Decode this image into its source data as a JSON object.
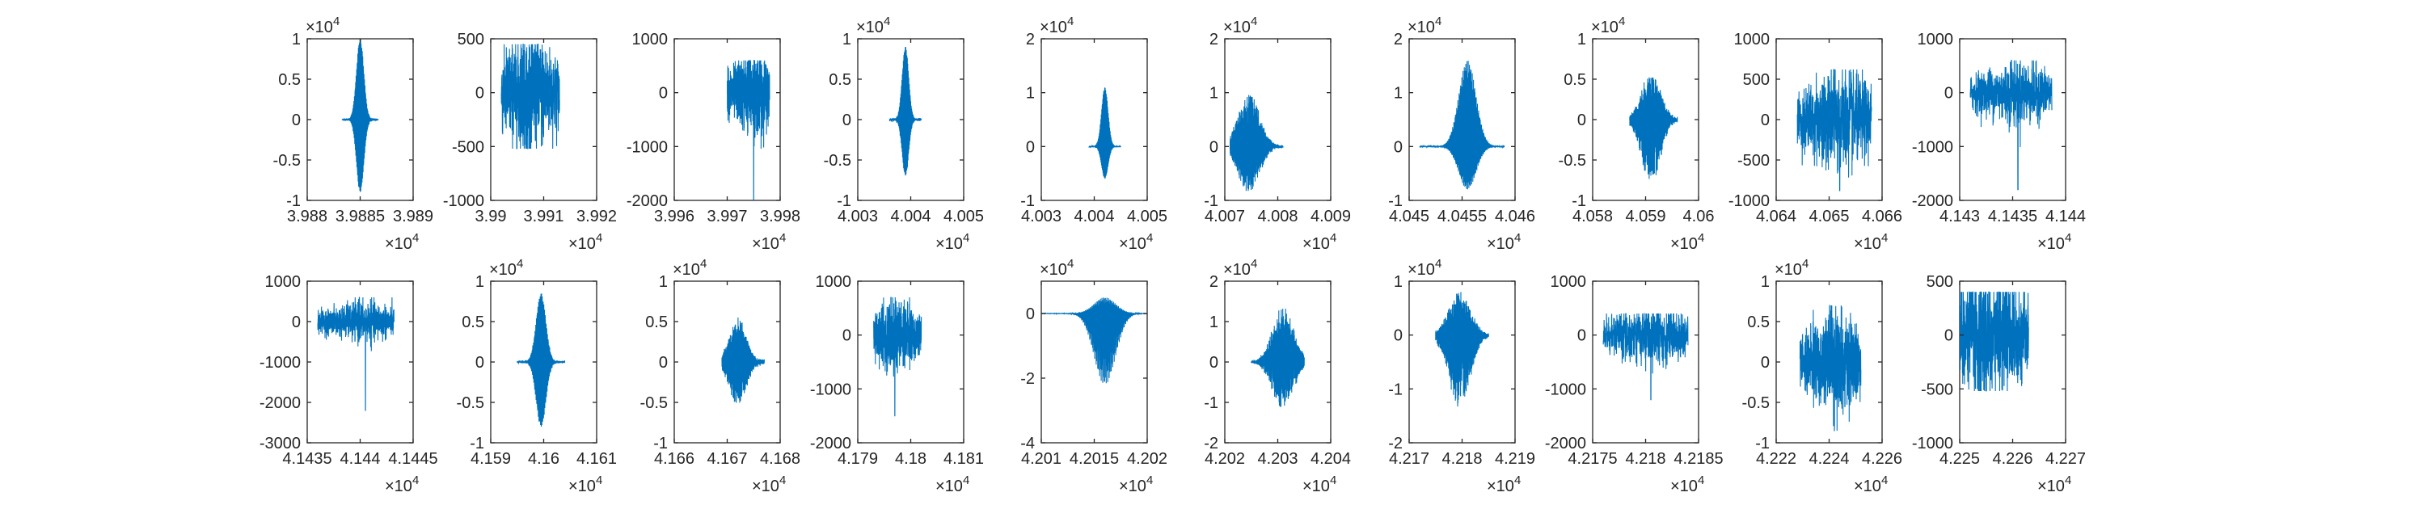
{
  "chart_data": {
    "type": "line",
    "grid": false,
    "legend": "none",
    "line_color": "#0072BD",
    "axis_color": "#262626",
    "subplots": [
      {
        "row": 0,
        "col": 0,
        "xlim": [
          39880,
          39890
        ],
        "x_ticks": [
          "3.988",
          "3.9885",
          "3.989"
        ],
        "x_tick_values": [
          39880,
          39885,
          39890
        ],
        "x_exponent": "4",
        "ylim": [
          -10000,
          10000
        ],
        "y_ticks": [
          "-1",
          "-0.5",
          "0",
          "0.5",
          "1"
        ],
        "y_tick_values": [
          -10000,
          -5000,
          0,
          5000,
          10000
        ],
        "y_exponent": "4",
        "signal": {
          "x_start": 39883.3,
          "x_end": 39886.7,
          "amplitude_max": 10000,
          "amplitude_min": -9000,
          "peak_x": 39885,
          "baseline_noise": 200,
          "shape": "damped"
        }
      },
      {
        "row": 0,
        "col": 1,
        "xlim": [
          39900,
          39920
        ],
        "x_ticks": [
          "3.99",
          "3.991",
          "3.992"
        ],
        "x_tick_values": [
          39900,
          39910,
          39920
        ],
        "x_exponent": "4",
        "ylim": [
          -1000,
          500
        ],
        "y_ticks": [
          "-1000",
          "-500",
          "0",
          "500"
        ],
        "y_tick_values": [
          -1000,
          -500,
          0,
          500
        ],
        "y_exponent": "",
        "signal": {
          "x_start": 39902,
          "x_end": 39913,
          "amplitude_max": 450,
          "amplitude_min": -520,
          "peak_x": 39907,
          "baseline_noise": 280,
          "shape": "noise"
        }
      },
      {
        "row": 0,
        "col": 2,
        "xlim": [
          39960,
          39980
        ],
        "x_ticks": [
          "3.996",
          "3.997",
          "3.998"
        ],
        "x_tick_values": [
          39960,
          39970,
          39980
        ],
        "x_exponent": "4",
        "ylim": [
          -2000,
          1000
        ],
        "y_ticks": [
          "-2000",
          "-1000",
          "0",
          "1000"
        ],
        "y_tick_values": [
          -2000,
          -1000,
          0,
          1000
        ],
        "y_exponent": "",
        "signal": {
          "x_start": 39970,
          "x_end": 39978,
          "amplitude_max": 600,
          "amplitude_min": -2000,
          "peak_x": 39975,
          "baseline_noise": 380,
          "shape": "noise"
        }
      },
      {
        "row": 0,
        "col": 3,
        "xlim": [
          40030,
          40050
        ],
        "x_ticks": [
          "4.003",
          "4.004",
          "4.005"
        ],
        "x_tick_values": [
          40030,
          40040,
          40050
        ],
        "x_exponent": "4",
        "ylim": [
          -10000,
          10000
        ],
        "y_ticks": [
          "-1",
          "-0.5",
          "0",
          "0.5",
          "1"
        ],
        "y_tick_values": [
          -10000,
          -5000,
          0,
          5000,
          10000
        ],
        "y_exponent": "4",
        "signal": {
          "x_start": 40036,
          "x_end": 40042,
          "amplitude_max": 9000,
          "amplitude_min": -7000,
          "peak_x": 40039,
          "baseline_noise": 250,
          "shape": "damped"
        }
      },
      {
        "row": 0,
        "col": 4,
        "xlim": [
          40030,
          40050
        ],
        "x_ticks": [
          "4.003",
          "4.004",
          "4.005"
        ],
        "x_tick_values": [
          40030,
          40040,
          40050
        ],
        "x_exponent": "4",
        "ylim": [
          -10000,
          20000
        ],
        "y_ticks": [
          "-1",
          "0",
          "1",
          "2"
        ],
        "y_tick_values": [
          -10000,
          0,
          10000,
          20000
        ],
        "y_exponent": "4",
        "signal": {
          "x_start": 40039,
          "x_end": 40045,
          "amplitude_max": 11000,
          "amplitude_min": -6000,
          "peak_x": 40042,
          "baseline_noise": 250,
          "shape": "damped"
        }
      },
      {
        "row": 0,
        "col": 5,
        "xlim": [
          40070,
          40090
        ],
        "x_ticks": [
          "4.007",
          "4.008",
          "4.009"
        ],
        "x_tick_values": [
          40070,
          40080,
          40090
        ],
        "x_exponent": "4",
        "ylim": [
          -10000,
          20000
        ],
        "y_ticks": [
          "-1",
          "0",
          "1",
          "2"
        ],
        "y_tick_values": [
          -10000,
          0,
          10000,
          20000
        ],
        "y_exponent": "4",
        "signal": {
          "x_start": 40071,
          "x_end": 40081,
          "amplitude_max": 10500,
          "amplitude_min": -9000,
          "peak_x": 40074.5,
          "baseline_noise": 300,
          "shape": "burst"
        }
      },
      {
        "row": 0,
        "col": 6,
        "xlim": [
          40450,
          40460
        ],
        "x_ticks": [
          "4.045",
          "4.0455",
          "4.046"
        ],
        "x_tick_values": [
          40450,
          40455,
          40460
        ],
        "x_exponent": "4",
        "ylim": [
          -10000,
          20000
        ],
        "y_ticks": [
          "-1",
          "0",
          "1",
          "2"
        ],
        "y_tick_values": [
          -10000,
          0,
          10000,
          20000
        ],
        "y_exponent": "4",
        "signal": {
          "x_start": 40451,
          "x_end": 40459,
          "amplitude_max": 16000,
          "amplitude_min": -8000,
          "peak_x": 40455.5,
          "baseline_noise": 150,
          "shape": "damped"
        }
      },
      {
        "row": 0,
        "col": 7,
        "xlim": [
          40580,
          40600
        ],
        "x_ticks": [
          "4.058",
          "4.059",
          "4.06"
        ],
        "x_tick_values": [
          40580,
          40590,
          40600
        ],
        "x_exponent": "4",
        "ylim": [
          -10000,
          10000
        ],
        "y_ticks": [
          "-1",
          "-0.5",
          "0",
          "0.5",
          "1"
        ],
        "y_tick_values": [
          -10000,
          -5000,
          0,
          5000,
          10000
        ],
        "y_exponent": "4",
        "signal": {
          "x_start": 40587,
          "x_end": 40596,
          "amplitude_max": 6000,
          "amplitude_min": -8000,
          "peak_x": 40591,
          "baseline_noise": 250,
          "shape": "burst"
        }
      },
      {
        "row": 0,
        "col": 8,
        "xlim": [
          40640,
          40660
        ],
        "x_ticks": [
          "4.064",
          "4.065",
          "4.066"
        ],
        "x_tick_values": [
          40640,
          40650,
          40660
        ],
        "x_exponent": "4",
        "ylim": [
          -1000,
          1000
        ],
        "y_ticks": [
          "-1000",
          "-500",
          "0",
          "500",
          "1000"
        ],
        "y_tick_values": [
          -1000,
          -500,
          0,
          500,
          1000
        ],
        "y_exponent": "",
        "signal": {
          "x_start": 40644,
          "x_end": 40658,
          "amplitude_max": 620,
          "amplitude_min": -880,
          "peak_x": 40652,
          "baseline_noise": 320,
          "shape": "noise"
        }
      },
      {
        "row": 0,
        "col": 9,
        "xlim": [
          41430,
          41440
        ],
        "x_ticks": [
          "4.143",
          "4.1435",
          "4.144"
        ],
        "x_tick_values": [
          41430,
          41435,
          41440
        ],
        "x_exponent": "4",
        "ylim": [
          -2000,
          1000
        ],
        "y_ticks": [
          "-2000",
          "-1000",
          "0",
          "1000"
        ],
        "y_tick_values": [
          -2000,
          -1000,
          0,
          1000
        ],
        "y_exponent": "",
        "signal": {
          "x_start": 41431,
          "x_end": 41438.7,
          "amplitude_max": 600,
          "amplitude_min": -1800,
          "peak_x": 41435.5,
          "baseline_noise": 300,
          "shape": "noise"
        }
      },
      {
        "row": 1,
        "col": 0,
        "xlim": [
          41435,
          41445
        ],
        "x_ticks": [
          "4.1435",
          "4.144",
          "4.1445"
        ],
        "x_tick_values": [
          41435,
          41440,
          41445
        ],
        "x_exponent": "4",
        "ylim": [
          -3000,
          1000
        ],
        "y_ticks": [
          "-3000",
          "-2000",
          "-1000",
          "0",
          "1000"
        ],
        "y_tick_values": [
          -3000,
          -2000,
          -1000,
          0,
          1000
        ],
        "y_exponent": "",
        "signal": {
          "x_start": 41436,
          "x_end": 41443.2,
          "amplitude_max": 600,
          "amplitude_min": -2200,
          "peak_x": 41440.5,
          "baseline_noise": 250,
          "shape": "noise"
        }
      },
      {
        "row": 1,
        "col": 1,
        "xlim": [
          41590,
          41610
        ],
        "x_ticks": [
          "4.159",
          "4.16",
          "4.161"
        ],
        "x_tick_values": [
          41590,
          41600,
          41610
        ],
        "x_exponent": "4",
        "ylim": [
          -10000,
          10000
        ],
        "y_ticks": [
          "-1",
          "-0.5",
          "0",
          "0.5",
          "1"
        ],
        "y_tick_values": [
          -10000,
          -5000,
          0,
          5000,
          10000
        ],
        "y_exponent": "4",
        "signal": {
          "x_start": 41595,
          "x_end": 41604,
          "amplitude_max": 8500,
          "amplitude_min": -8000,
          "peak_x": 41599.5,
          "baseline_noise": 250,
          "shape": "damped"
        }
      },
      {
        "row": 1,
        "col": 2,
        "xlim": [
          41660,
          41680
        ],
        "x_ticks": [
          "4.166",
          "4.167",
          "4.168"
        ],
        "x_tick_values": [
          41660,
          41670,
          41680
        ],
        "x_exponent": "4",
        "ylim": [
          -10000,
          10000
        ],
        "y_ticks": [
          "-1",
          "-0.5",
          "0",
          "0.5",
          "1"
        ],
        "y_tick_values": [
          -10000,
          -5000,
          0,
          5000,
          10000
        ],
        "y_exponent": "4",
        "signal": {
          "x_start": 41669,
          "x_end": 41677,
          "amplitude_max": 5500,
          "amplitude_min": -5500,
          "peak_x": 41672,
          "baseline_noise": 350,
          "shape": "burst"
        }
      },
      {
        "row": 1,
        "col": 3,
        "xlim": [
          41790,
          41810
        ],
        "x_ticks": [
          "4.179",
          "4.18",
          "4.181"
        ],
        "x_tick_values": [
          41790,
          41800,
          41810
        ],
        "x_exponent": "4",
        "ylim": [
          -2000,
          1000
        ],
        "y_ticks": [
          "-2000",
          "-1000",
          "0",
          "1000"
        ],
        "y_tick_values": [
          -2000,
          -1000,
          0,
          1000
        ],
        "y_exponent": "",
        "signal": {
          "x_start": 41793,
          "x_end": 41802,
          "amplitude_max": 700,
          "amplitude_min": -1500,
          "peak_x": 41797,
          "baseline_noise": 330,
          "shape": "noise"
        }
      },
      {
        "row": 1,
        "col": 4,
        "xlim": [
          42010,
          42020
        ],
        "x_ticks": [
          "4.201",
          "4.2015",
          "4.202"
        ],
        "x_tick_values": [
          42010,
          42015,
          42020
        ],
        "x_exponent": "4",
        "ylim": [
          -40000,
          10000
        ],
        "y_ticks": [
          "-4",
          "-2",
          "0"
        ],
        "y_tick_values": [
          -40000,
          -20000,
          0
        ],
        "y_exponent": "4",
        "signal": {
          "x_start": 42010,
          "x_end": 42020,
          "amplitude_max": 5000,
          "amplitude_min": -22000,
          "peak_x": 42016,
          "baseline_noise": 100,
          "shape": "damped"
        }
      },
      {
        "row": 1,
        "col": 5,
        "xlim": [
          42020,
          42040
        ],
        "x_ticks": [
          "4.202",
          "4.203",
          "4.204"
        ],
        "x_tick_values": [
          42020,
          42030,
          42040
        ],
        "x_exponent": "4",
        "ylim": [
          -20000,
          20000
        ],
        "y_ticks": [
          "-2",
          "-1",
          "0",
          "1",
          "2"
        ],
        "y_tick_values": [
          -20000,
          -10000,
          0,
          10000,
          20000
        ],
        "y_exponent": "4",
        "signal": {
          "x_start": 42025,
          "x_end": 42035,
          "amplitude_max": 14000,
          "amplitude_min": -12000,
          "peak_x": 42031,
          "baseline_noise": 400,
          "shape": "burst"
        }
      },
      {
        "row": 1,
        "col": 6,
        "xlim": [
          42170,
          42190
        ],
        "x_ticks": [
          "4.217",
          "4.218",
          "4.219"
        ],
        "x_tick_values": [
          42170,
          42180,
          42190
        ],
        "x_exponent": "4",
        "ylim": [
          -20000,
          10000
        ],
        "y_ticks": [
          "-2",
          "-1",
          "0",
          "1"
        ],
        "y_tick_values": [
          -20000,
          -10000,
          0,
          10000
        ],
        "y_exponent": "4",
        "signal": {
          "x_start": 42175,
          "x_end": 42185,
          "amplitude_max": 8500,
          "amplitude_min": -14000,
          "peak_x": 42179.5,
          "baseline_noise": 300,
          "shape": "burst"
        }
      },
      {
        "row": 1,
        "col": 7,
        "xlim": [
          42175,
          42185
        ],
        "x_ticks": [
          "4.2175",
          "4.218",
          "4.2185"
        ],
        "x_tick_values": [
          42175,
          42180,
          42185
        ],
        "x_exponent": "4",
        "ylim": [
          -2000,
          1000
        ],
        "y_ticks": [
          "-2000",
          "-1000",
          "0",
          "1000"
        ],
        "y_tick_values": [
          -2000,
          -1000,
          0,
          1000
        ],
        "y_exponent": "",
        "signal": {
          "x_start": 42176,
          "x_end": 42184,
          "amplitude_max": 400,
          "amplitude_min": -1200,
          "peak_x": 42180.5,
          "baseline_noise": 280,
          "shape": "noise"
        }
      },
      {
        "row": 1,
        "col": 8,
        "xlim": [
          42220,
          42260
        ],
        "x_ticks": [
          "4.222",
          "4.224",
          "4.226"
        ],
        "x_tick_values": [
          42220,
          42240,
          42260
        ],
        "x_exponent": "4",
        "ylim": [
          -10000,
          10000
        ],
        "y_ticks": [
          "-1",
          "-0.5",
          "0",
          "0.5",
          "1"
        ],
        "y_tick_values": [
          -10000,
          -5000,
          0,
          5000,
          10000
        ],
        "y_exponent": "4",
        "signal": {
          "x_start": 42229,
          "x_end": 42252,
          "amplitude_max": 7000,
          "amplitude_min": -8500,
          "peak_x": 42242,
          "baseline_noise": 3000,
          "shape": "noise"
        }
      },
      {
        "row": 1,
        "col": 9,
        "xlim": [
          42250,
          42270
        ],
        "x_ticks": [
          "4.225",
          "4.226",
          "4.227"
        ],
        "x_tick_values": [
          42250,
          42260,
          42270
        ],
        "x_exponent": "4",
        "ylim": [
          -1000,
          500
        ],
        "y_ticks": [
          "-1000",
          "-500",
          "0",
          "500"
        ],
        "y_tick_values": [
          -1000,
          -500,
          0,
          500
        ],
        "y_exponent": "",
        "signal": {
          "x_start": 42250,
          "x_end": 42263,
          "amplitude_max": 400,
          "amplitude_min": -520,
          "peak_x": 42255,
          "baseline_noise": 300,
          "shape": "noise"
        }
      }
    ]
  }
}
